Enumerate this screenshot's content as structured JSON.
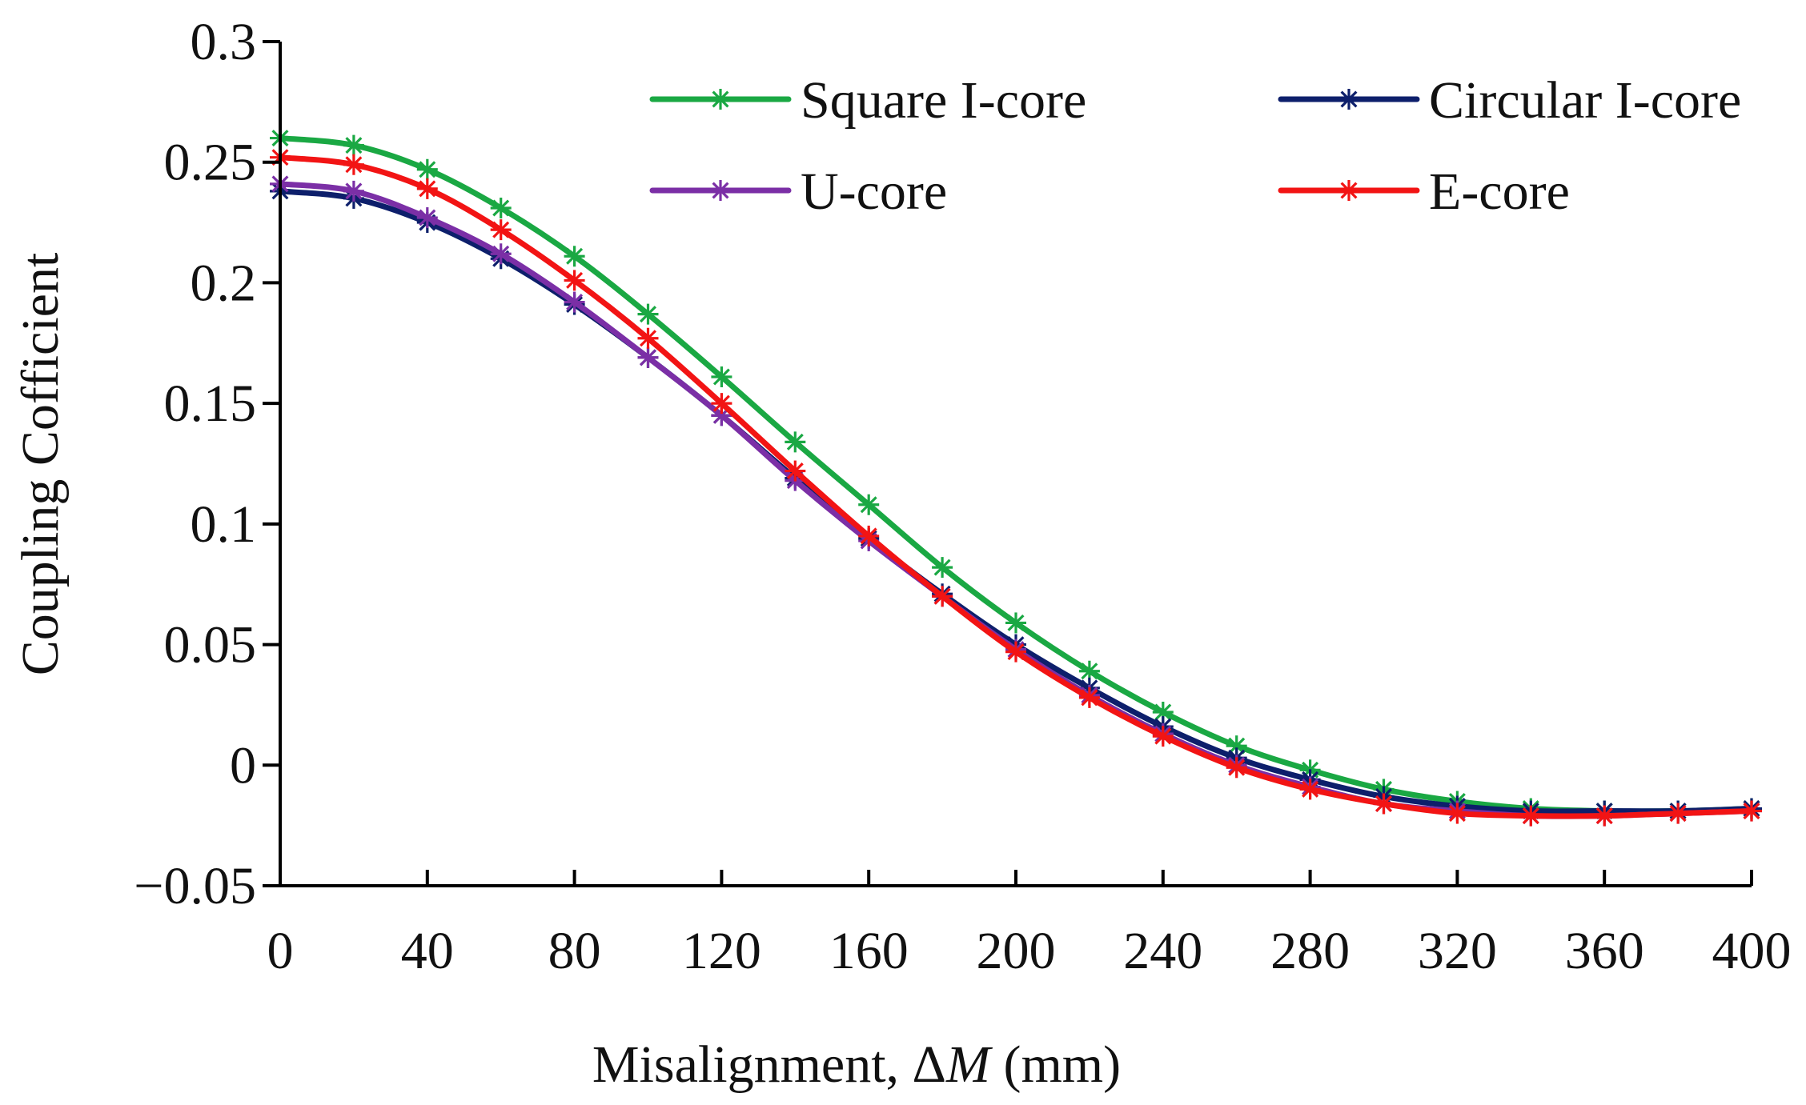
{
  "chart_data": {
    "type": "line",
    "title": "",
    "xlabel_prefix": "Misalignment, Δ",
    "xlabel_var": "M",
    "xlabel_suffix": " (mm)",
    "ylabel": "Coupling Cofficient",
    "xlim": [
      0,
      400
    ],
    "ylim": [
      -0.05,
      0.3
    ],
    "x_ticks": [
      0,
      40,
      80,
      120,
      160,
      200,
      240,
      280,
      320,
      360,
      400
    ],
    "x_tick_labels": [
      "0",
      "40",
      "80",
      "120",
      "160",
      "200",
      "240",
      "280",
      "320",
      "360",
      "400"
    ],
    "y_ticks": [
      0.3,
      0.25,
      0.2,
      0.15,
      0.1,
      0.05,
      0,
      -0.05
    ],
    "y_tick_labels": [
      "0.3",
      "0.25",
      "0.2",
      "0.15",
      "0.1",
      "0.05",
      "0",
      "−0.05"
    ],
    "grid": false,
    "legend_position": "top-right, two columns",
    "x": [
      0,
      20,
      40,
      60,
      80,
      100,
      120,
      140,
      160,
      180,
      200,
      220,
      240,
      260,
      280,
      300,
      320,
      340,
      360,
      380,
      400
    ],
    "series": [
      {
        "name": "Square I-core",
        "color": "#1aa843",
        "values": [
          0.26,
          0.257,
          0.247,
          0.231,
          0.211,
          0.187,
          0.161,
          0.134,
          0.108,
          0.082,
          0.059,
          0.039,
          0.022,
          0.008,
          -0.002,
          -0.01,
          -0.015,
          -0.018,
          -0.019,
          -0.019,
          -0.018
        ]
      },
      {
        "name": "Circular I-core",
        "color": "#0d1f6b",
        "values": [
          0.238,
          0.235,
          0.225,
          0.21,
          0.191,
          0.169,
          0.145,
          0.119,
          0.094,
          0.071,
          0.05,
          0.032,
          0.016,
          0.003,
          -0.006,
          -0.013,
          -0.017,
          -0.019,
          -0.019,
          -0.019,
          -0.018
        ]
      },
      {
        "name": "U-core",
        "color": "#7b2fa6",
        "values": [
          0.241,
          0.238,
          0.227,
          0.212,
          0.192,
          0.169,
          0.145,
          0.118,
          0.093,
          0.07,
          0.048,
          0.029,
          0.013,
          0.0,
          -0.009,
          -0.016,
          -0.019,
          -0.021,
          -0.021,
          -0.02,
          -0.019
        ]
      },
      {
        "name": "E-core",
        "color": "#f21414",
        "values": [
          0.252,
          0.249,
          0.239,
          0.222,
          0.201,
          0.177,
          0.15,
          0.122,
          0.095,
          0.07,
          0.047,
          0.028,
          0.012,
          -0.001,
          -0.01,
          -0.016,
          -0.02,
          -0.021,
          -0.021,
          -0.02,
          -0.019
        ]
      }
    ]
  }
}
